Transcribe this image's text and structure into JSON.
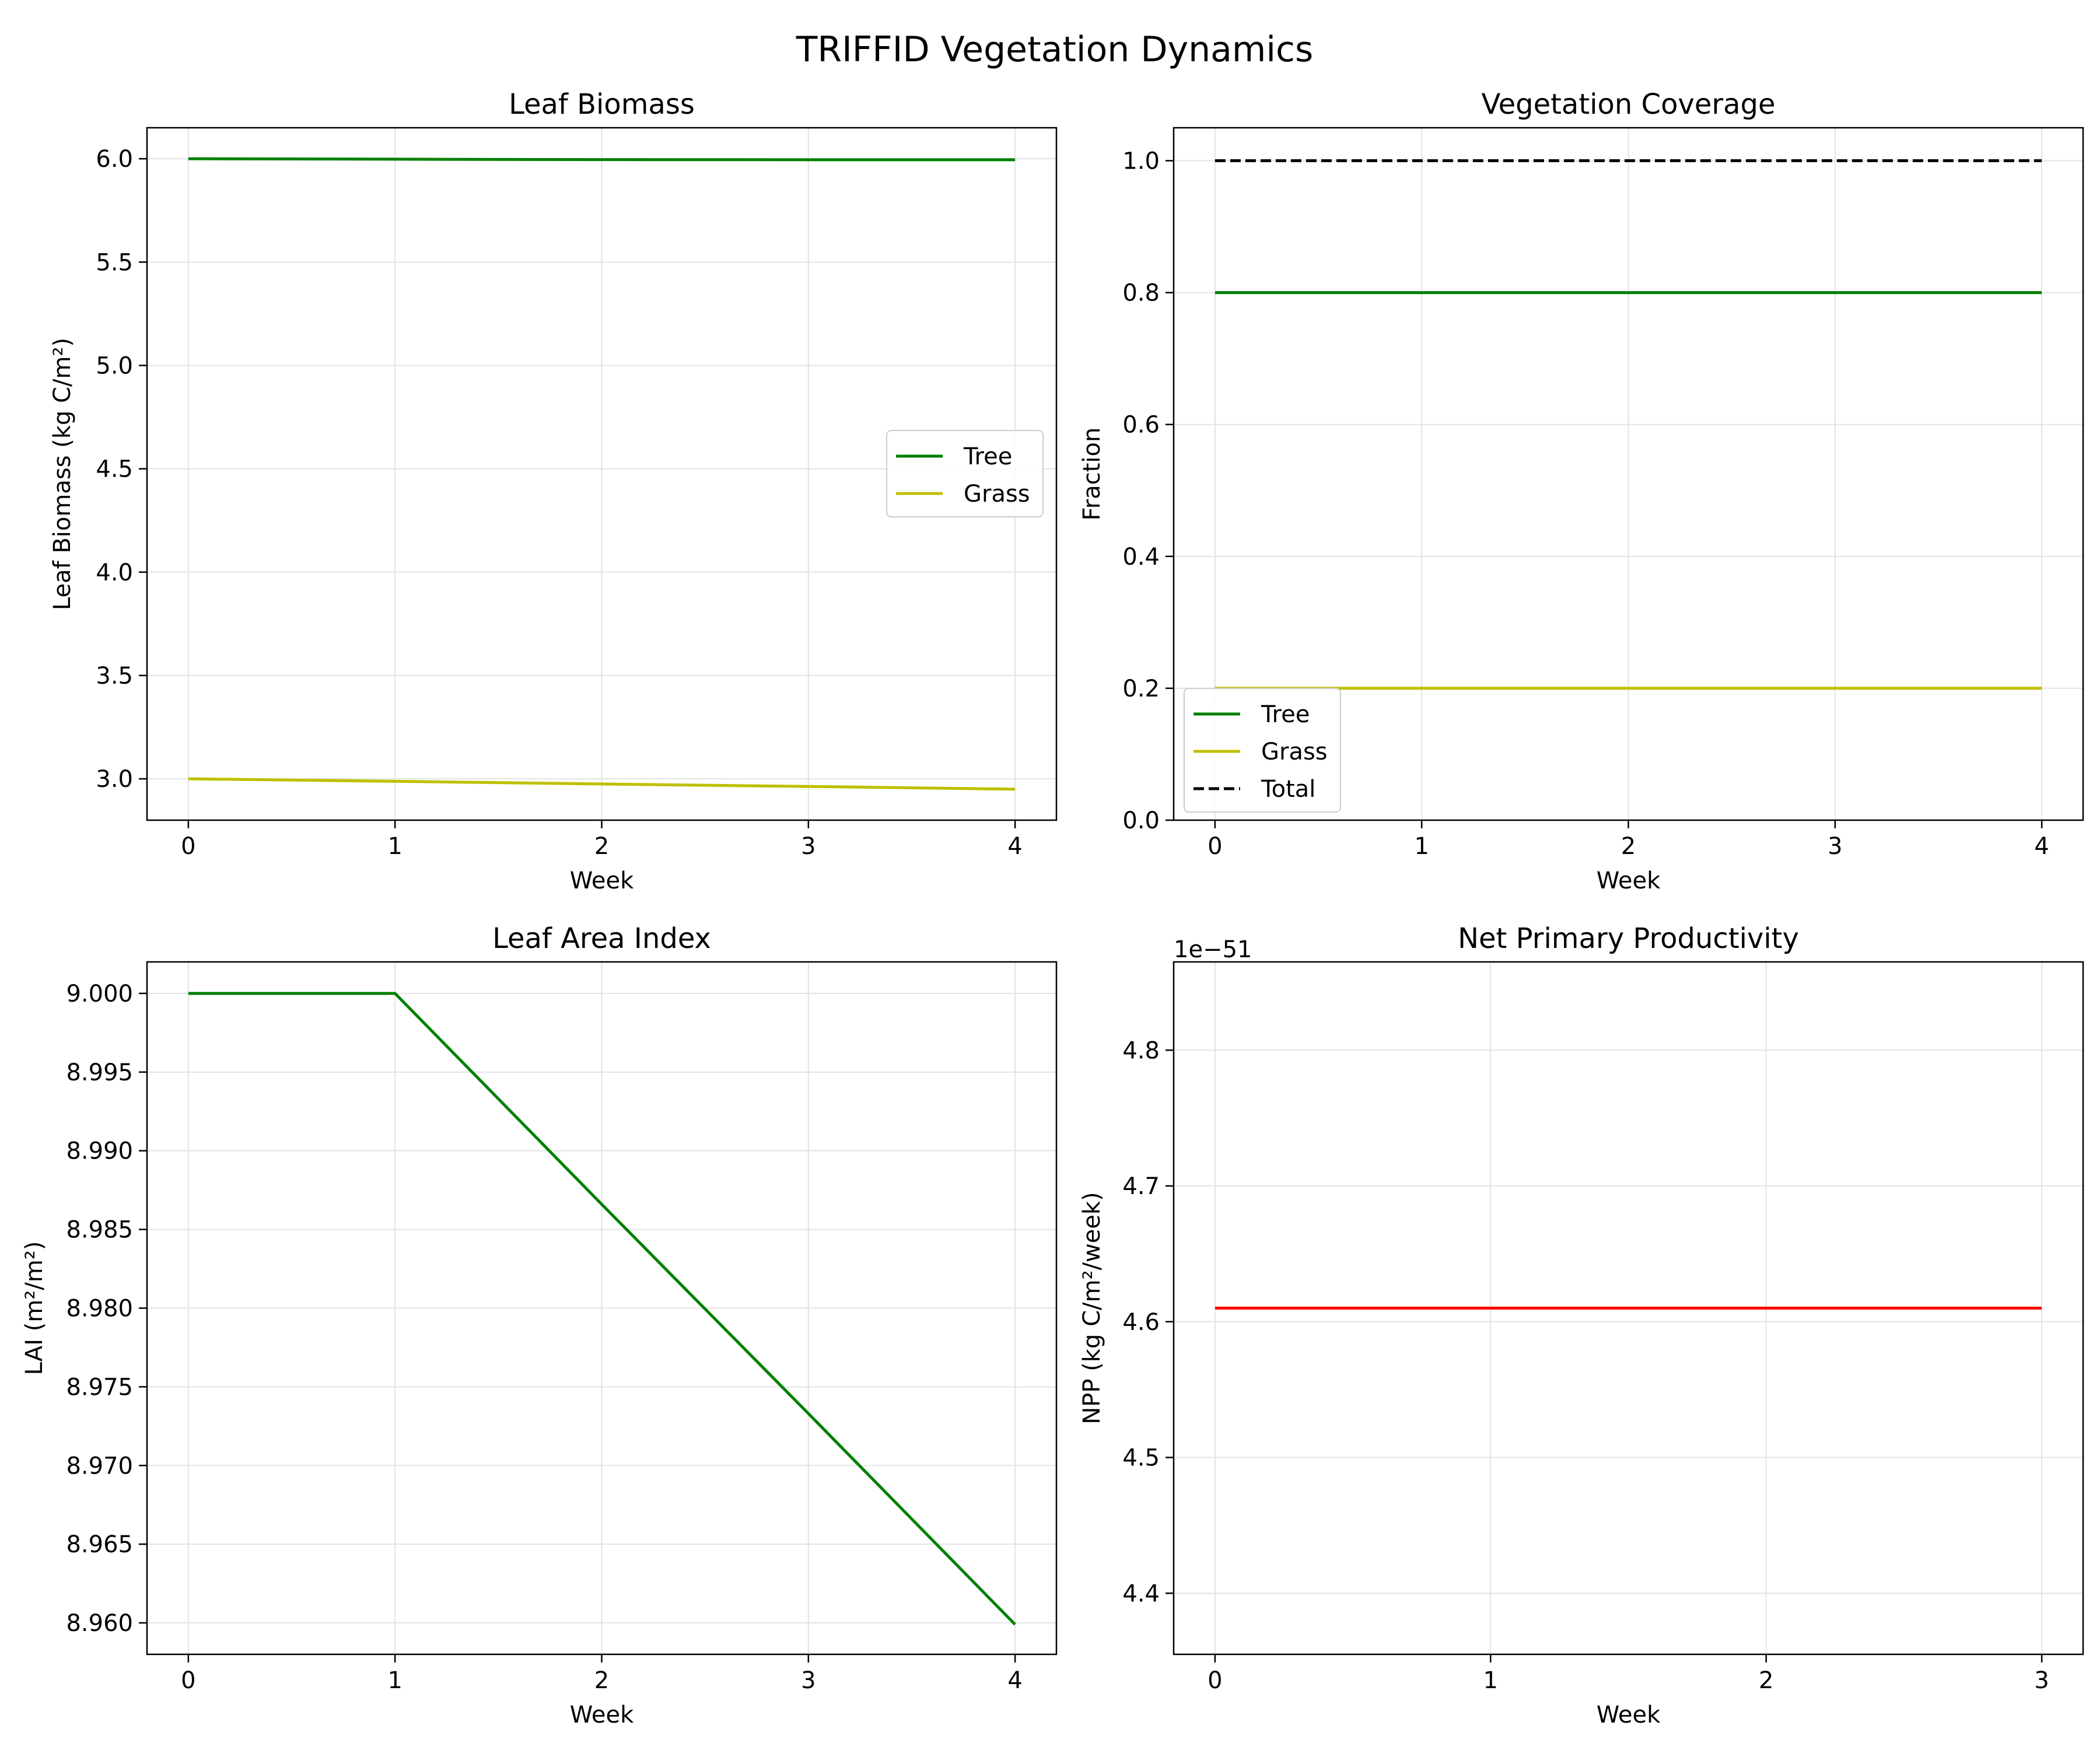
{
  "figure": {
    "title": "TRIFFID Vegetation Dynamics"
  },
  "chart_data": [
    {
      "type": "line",
      "title": "Leaf Biomass",
      "xlabel": "Week",
      "ylabel": "Leaf Biomass (kg C/m²)",
      "xlim": [
        -0.2,
        4.2
      ],
      "ylim": [
        2.8,
        6.15
      ],
      "xticks": [
        0,
        1,
        2,
        3,
        4
      ],
      "yticks": [
        3.0,
        3.5,
        4.0,
        4.5,
        5.0,
        5.5,
        6.0
      ],
      "ytick_decimals": 1,
      "grid": true,
      "legend": "center-right",
      "series": [
        {
          "name": "Tree",
          "color": "#008000",
          "dash": "solid",
          "x": [
            0,
            1,
            2,
            3,
            4
          ],
          "y": [
            6.0,
            5.998,
            5.996,
            5.995,
            5.995
          ]
        },
        {
          "name": "Grass",
          "color": "#bfbf00",
          "dash": "solid",
          "x": [
            0,
            1,
            2,
            3,
            4
          ],
          "y": [
            3.0,
            2.988,
            2.975,
            2.963,
            2.95
          ]
        }
      ]
    },
    {
      "type": "line",
      "title": "Vegetation Coverage",
      "xlabel": "Week",
      "ylabel": "Fraction",
      "xlim": [
        -0.2,
        4.2
      ],
      "ylim": [
        0.0,
        1.05
      ],
      "xticks": [
        0,
        1,
        2,
        3,
        4
      ],
      "yticks": [
        0.0,
        0.2,
        0.4,
        0.6,
        0.8,
        1.0
      ],
      "ytick_decimals": 1,
      "grid": true,
      "legend": "lower-left",
      "series": [
        {
          "name": "Tree",
          "color": "#008000",
          "dash": "solid",
          "x": [
            0,
            1,
            2,
            3,
            4
          ],
          "y": [
            0.8,
            0.8,
            0.8,
            0.8,
            0.8
          ]
        },
        {
          "name": "Grass",
          "color": "#bfbf00",
          "dash": "solid",
          "x": [
            0,
            1,
            2,
            3,
            4
          ],
          "y": [
            0.2,
            0.2,
            0.2,
            0.2,
            0.2
          ]
        },
        {
          "name": "Total",
          "color": "#000000",
          "dash": "dashed",
          "x": [
            0,
            1,
            2,
            3,
            4
          ],
          "y": [
            1.0,
            1.0,
            1.0,
            1.0,
            1.0
          ]
        }
      ]
    },
    {
      "type": "line",
      "title": "Leaf Area Index",
      "xlabel": "Week",
      "ylabel": "LAI (m²/m²)",
      "xlim": [
        -0.2,
        4.2
      ],
      "ylim": [
        8.958,
        9.002
      ],
      "xticks": [
        0,
        1,
        2,
        3,
        4
      ],
      "yticks": [
        8.96,
        8.965,
        8.97,
        8.975,
        8.98,
        8.985,
        8.99,
        8.995,
        9.0
      ],
      "ytick_decimals": 3,
      "grid": true,
      "legend": "",
      "series": [
        {
          "color": "#008000",
          "dash": "solid",
          "x": [
            0,
            1,
            2,
            3,
            4
          ],
          "y": [
            9.0,
            9.0,
            8.9866,
            8.9733,
            8.9599
          ]
        }
      ]
    },
    {
      "type": "line",
      "title": "Net Primary Productivity",
      "xlabel": "Week",
      "ylabel": "NPP (kg C/m²/week)",
      "offset_label": "1e−51",
      "xlim": [
        -0.15,
        3.15
      ],
      "ylim": [
        4.355,
        4.865
      ],
      "xticks": [
        0,
        1,
        2,
        3
      ],
      "yticks": [
        4.4,
        4.5,
        4.6,
        4.7,
        4.8
      ],
      "ytick_decimals": 1,
      "grid": true,
      "legend": "",
      "series": [
        {
          "color": "#ff0000",
          "dash": "solid",
          "x": [
            0,
            1,
            2,
            3
          ],
          "y": [
            4.61,
            4.61,
            4.61,
            4.61
          ]
        }
      ]
    }
  ]
}
